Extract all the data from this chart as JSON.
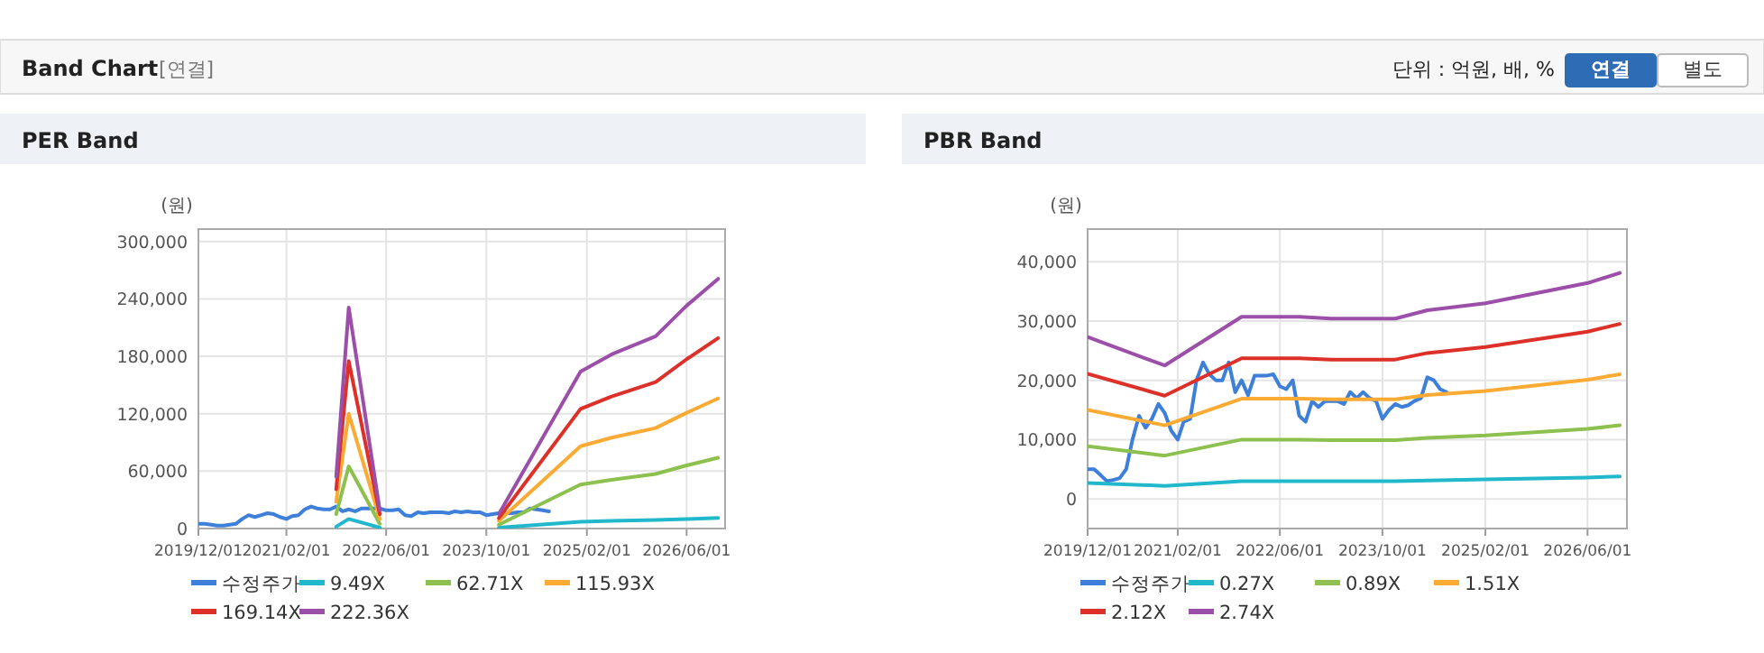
{
  "chart_data": [
    {
      "type": "line",
      "title": "PER Band",
      "ylabel": "(원)",
      "annotations": [
        "Band Chart",
        "[연결]",
        "단위 : 억원, 배, %",
        "연결",
        "별도"
      ],
      "xlim": [
        "2019-12-01",
        "2026-12-05"
      ],
      "xticks": [
        {
          "value": "2019-12-01",
          "label": "2019/12/01"
        },
        {
          "value": "2021-02-01",
          "label": "2021/02/01"
        },
        {
          "value": "2022-06-01",
          "label": "2022/06/01"
        },
        {
          "value": "2023-10-01",
          "label": "2023/10/01"
        },
        {
          "value": "2025-02-01",
          "label": "2025/02/01"
        },
        {
          "value": "2026-06-01",
          "label": "2026/06/01"
        }
      ],
      "ylim": [
        0,
        313000
      ],
      "yticks": [
        0,
        {
          "value": 60000,
          "label": "60,000"
        },
        {
          "value": 120000,
          "label": "120,000"
        },
        {
          "value": 180000,
          "label": "180,000"
        },
        {
          "value": 240000,
          "label": "240,000"
        },
        {
          "value": 300000,
          "label": "300,000"
        }
      ],
      "grid": true,
      "legend": "bottom",
      "series": [
        {
          "name": "수정주가",
          "color": "#3d7fd9",
          "x": [
            "2019-12",
            "2020-01",
            "2020-02",
            "2020-03",
            "2020-04",
            "2020-05",
            "2020-06",
            "2020-07",
            "2020-08",
            "2020-09",
            "2020-10",
            "2020-11",
            "2020-12",
            "2021-01",
            "2021-02",
            "2021-03",
            "2021-04",
            "2021-05",
            "2021-06",
            "2021-07",
            "2021-08",
            "2021-09",
            "2021-10",
            "2021-11",
            "2021-12",
            "2022-01",
            "2022-02",
            "2022-04",
            "2022-05",
            "2022-06",
            "2022-07",
            "2022-08",
            "2022-09",
            "2022-10",
            "2022-11",
            "2022-12",
            "2023-01",
            "2023-03",
            "2023-04",
            "2023-05",
            "2023-06",
            "2023-07",
            "2023-08",
            "2023-09",
            "2023-10",
            "2023-11",
            "2023-12",
            "2024-01",
            "2024-02",
            "2024-03",
            "2024-04",
            "2024-05",
            "2024-06",
            "2024-07",
            "2024-08"
          ],
          "values": [
            5000,
            5000,
            4000,
            3000,
            3000,
            4000,
            5000,
            10000,
            14000,
            12000,
            14000,
            16000,
            15000,
            12000,
            10000,
            13000,
            14000,
            20000,
            23000,
            21000,
            20000,
            20000,
            23000,
            18000,
            20000,
            18000,
            21000,
            21000,
            21000,
            19000,
            19000,
            20000,
            14000,
            13000,
            17000,
            16000,
            17000,
            17000,
            16000,
            18000,
            17000,
            18000,
            17000,
            17000,
            14000,
            15000,
            16000,
            16000,
            16000,
            17000,
            17000,
            21000,
            20000,
            19000,
            18000
          ]
        },
        {
          "name": "9.49X",
          "color": "#21b8cc",
          "x": [
            "2021-10",
            "2021-12",
            "2022-05",
            "2023-01",
            "2023-12",
            "2025-01",
            "2025-06",
            "2026-01",
            "2026-06",
            "2026-11"
          ],
          "values": [
            2000,
            10000,
            1000,
            null,
            1000,
            7000,
            8000,
            9000,
            10000,
            11000
          ]
        },
        {
          "name": "62.71X",
          "color": "#8cc04f",
          "x": [
            "2021-10",
            "2021-12",
            "2022-05",
            "2023-01",
            "2023-12",
            "2025-01",
            "2025-06",
            "2026-01",
            "2026-06",
            "2026-11"
          ],
          "values": [
            15000,
            65000,
            5000,
            null,
            4000,
            46000,
            51000,
            57000,
            66000,
            74000
          ]
        },
        {
          "name": "115.93X",
          "color": "#fbab33",
          "x": [
            "2021-10",
            "2021-12",
            "2022-05",
            "2023-01",
            "2023-12",
            "2025-01",
            "2025-06",
            "2026-01",
            "2026-06",
            "2026-11"
          ],
          "values": [
            28000,
            120000,
            10000,
            null,
            8000,
            86000,
            95000,
            105000,
            121000,
            136000
          ]
        },
        {
          "name": "169.14X",
          "color": "#dd3029",
          "x": [
            "2021-10",
            "2021-12",
            "2022-05",
            "2023-01",
            "2023-12",
            "2025-01",
            "2025-06",
            "2026-01",
            "2026-06",
            "2026-11"
          ],
          "values": [
            41000,
            175000,
            15000,
            null,
            11000,
            125000,
            138000,
            153000,
            177000,
            199000
          ]
        },
        {
          "name": "222.36X",
          "color": "#9b4fa8",
          "x": [
            "2021-10",
            "2021-12",
            "2022-05",
            "2023-01",
            "2023-12",
            "2025-01",
            "2025-06",
            "2026-01",
            "2026-06",
            "2026-11"
          ],
          "values": [
            54000,
            231000,
            19000,
            null,
            15000,
            164000,
            182000,
            201000,
            233000,
            261000
          ]
        }
      ]
    },
    {
      "type": "line",
      "title": "PBR Band",
      "ylabel": "(원)",
      "xlim": [
        "2019-12-01",
        "2026-12-05"
      ],
      "xticks": [
        {
          "value": "2019-12-01",
          "label": "2019/12/01"
        },
        {
          "value": "2021-02-01",
          "label": "2021/02/01"
        },
        {
          "value": "2022-06-01",
          "label": "2022/06/01"
        },
        {
          "value": "2023-10-01",
          "label": "2023/10/01"
        },
        {
          "value": "2025-02-01",
          "label": "2025/02/01"
        },
        {
          "value": "2026-06-01",
          "label": "2026/06/01"
        }
      ],
      "ylim": [
        -5000,
        45500
      ],
      "yticks": [
        0,
        {
          "value": 10000,
          "label": "10,000"
        },
        {
          "value": 20000,
          "label": "20,000"
        },
        {
          "value": 30000,
          "label": "30,000"
        },
        {
          "value": 40000,
          "label": "40,000"
        }
      ],
      "grid": true,
      "legend": "bottom",
      "series": [
        {
          "name": "수정주가",
          "color": "#3d7fd9",
          "x": [
            "2019-12",
            "2020-01",
            "2020-02",
            "2020-03",
            "2020-04",
            "2020-05",
            "2020-06",
            "2020-07",
            "2020-08",
            "2020-09",
            "2020-10",
            "2020-11",
            "2020-12",
            "2021-01",
            "2021-02",
            "2021-03",
            "2021-04",
            "2021-05",
            "2021-06",
            "2021-07",
            "2021-08",
            "2021-09",
            "2021-10",
            "2021-11",
            "2021-12",
            "2022-01",
            "2022-02",
            "2022-04",
            "2022-05",
            "2022-06",
            "2022-07",
            "2022-08",
            "2022-09",
            "2022-10",
            "2022-11",
            "2022-12",
            "2023-01",
            "2023-03",
            "2023-04",
            "2023-05",
            "2023-06",
            "2023-07",
            "2023-08",
            "2023-09",
            "2023-10",
            "2023-11",
            "2023-12",
            "2024-01",
            "2024-02",
            "2024-03",
            "2024-04",
            "2024-05",
            "2024-06",
            "2024-07",
            "2024-08"
          ],
          "values": [
            5000,
            5000,
            4000,
            3000,
            3200,
            3500,
            5000,
            10000,
            14000,
            12000,
            13500,
            16000,
            14500,
            11500,
            10000,
            13000,
            13500,
            20000,
            23000,
            21000,
            20000,
            20000,
            23000,
            18000,
            20000,
            17500,
            20800,
            20800,
            21000,
            19000,
            18500,
            20000,
            14000,
            13000,
            16500,
            15500,
            16500,
            16500,
            16000,
            18000,
            17000,
            18000,
            17000,
            16500,
            13500,
            15000,
            16000,
            15500,
            15800,
            16500,
            17000,
            20500,
            20000,
            18500,
            18000
          ]
        },
        {
          "name": "0.27X",
          "color": "#21b8cc",
          "x": [
            "2019-12",
            "2020-12",
            "2021-12",
            "2022-09",
            "2023-02",
            "2023-12",
            "2024-05",
            "2025-02",
            "2026-06",
            "2026-11"
          ],
          "values": [
            2700,
            2200,
            3000,
            3000,
            3000,
            3000,
            3100,
            3300,
            3600,
            3800
          ]
        },
        {
          "name": "0.89X",
          "color": "#8cc04f",
          "x": [
            "2019-12",
            "2020-12",
            "2021-12",
            "2022-09",
            "2023-02",
            "2023-12",
            "2024-05",
            "2025-02",
            "2026-06",
            "2026-11"
          ],
          "values": [
            8900,
            7300,
            10000,
            10000,
            9900,
            9900,
            10300,
            10700,
            11800,
            12400
          ]
        },
        {
          "name": "1.51X",
          "color": "#fbab33",
          "x": [
            "2019-12",
            "2020-12",
            "2021-12",
            "2022-09",
            "2023-02",
            "2023-12",
            "2024-05",
            "2025-02",
            "2026-06",
            "2026-11"
          ],
          "values": [
            15000,
            12400,
            16900,
            16900,
            16800,
            16800,
            17500,
            18200,
            20100,
            21000
          ]
        },
        {
          "name": "2.12X",
          "color": "#dd3029",
          "x": [
            "2019-12",
            "2020-12",
            "2021-12",
            "2022-09",
            "2023-02",
            "2023-12",
            "2024-05",
            "2025-02",
            "2026-06",
            "2026-11"
          ],
          "values": [
            21100,
            17400,
            23700,
            23700,
            23500,
            23500,
            24600,
            25600,
            28200,
            29500
          ]
        },
        {
          "name": "2.74X",
          "color": "#9b4fa8",
          "x": [
            "2019-12",
            "2020-12",
            "2021-12",
            "2022-09",
            "2023-02",
            "2023-12",
            "2024-05",
            "2025-02",
            "2026-06",
            "2026-11"
          ],
          "values": [
            27300,
            22500,
            30700,
            30700,
            30400,
            30400,
            31800,
            33000,
            36400,
            38100
          ]
        }
      ]
    }
  ]
}
